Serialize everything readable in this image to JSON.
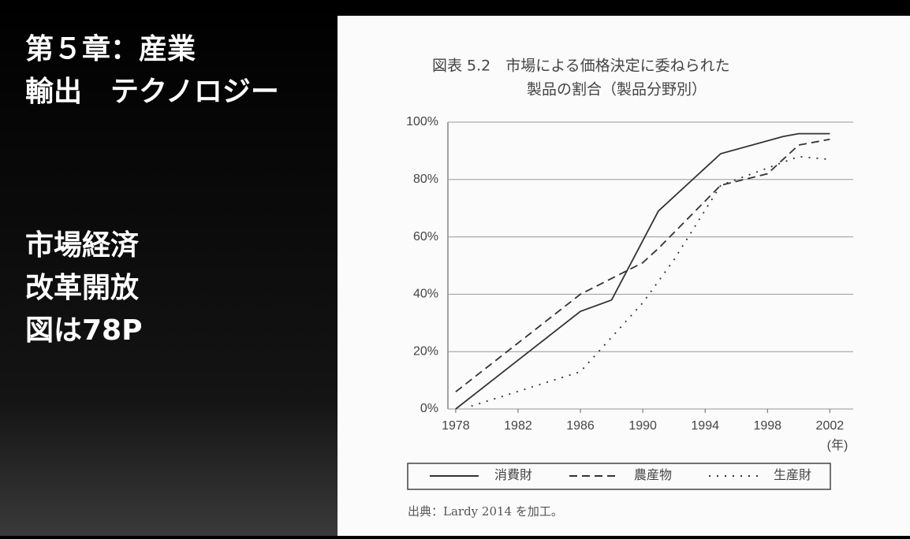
{
  "slide": {
    "heading": [
      "第５章：産業",
      "輸出　テクノロジー"
    ],
    "notes": [
      "市場経済",
      "改革開放",
      "図は78P"
    ]
  },
  "chart_data": {
    "type": "line",
    "title": [
      "図表 5.2　市場による価格決定に委ねられた",
      "製品の割合（製品分野別）"
    ],
    "x_unit": "(年)",
    "source": "出典：Lardy 2014 を加工。",
    "xlim": [
      1977.5,
      2003.5
    ],
    "xticks": [
      1978,
      1982,
      1986,
      1990,
      1994,
      1998,
      2002
    ],
    "ylim": [
      0,
      100
    ],
    "yticks": [
      {
        "value": 0,
        "label": "0%"
      },
      {
        "value": 20,
        "label": "20%"
      },
      {
        "value": 40,
        "label": "40%"
      },
      {
        "value": 60,
        "label": "60%"
      },
      {
        "value": 80,
        "label": "80%"
      },
      {
        "value": 100,
        "label": "100%"
      }
    ],
    "grid": true,
    "legend": "bottom",
    "series": [
      {
        "name": "消費財",
        "color": "#333333",
        "dash": "solid",
        "x": [
          1978,
          1986,
          1988,
          1991,
          1995,
          1999,
          2000,
          2002
        ],
        "values": [
          0,
          34,
          38,
          69,
          89,
          95,
          96,
          96
        ]
      },
      {
        "name": "農産物",
        "color": "#333333",
        "dash": "dashed",
        "x": [
          1978,
          1986,
          1990,
          1991,
          1995,
          1998,
          2000,
          2002
        ],
        "values": [
          6,
          40,
          51,
          56,
          78,
          82,
          92,
          94
        ]
      },
      {
        "name": "生産財",
        "color": "#333333",
        "dash": "dotted",
        "x": [
          1979,
          1986,
          1990,
          1992,
          1995,
          1999,
          2000,
          2002
        ],
        "values": [
          1,
          13,
          37,
          52,
          78,
          86,
          88,
          87
        ]
      }
    ]
  }
}
